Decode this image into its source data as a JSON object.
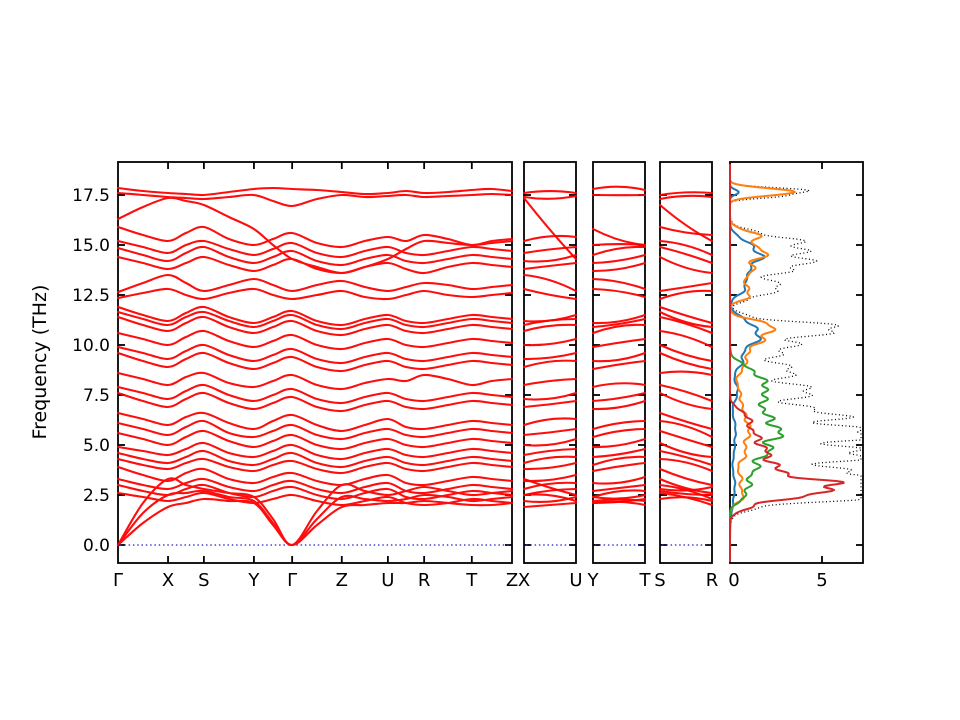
{
  "chart_data": {
    "type": "line",
    "title": "",
    "ylabel": "Frequency (THz)",
    "ylim": [
      -0.9,
      19.15
    ],
    "yticks": [
      0.0,
      2.5,
      5.0,
      7.5,
      10.0,
      12.5,
      15.0,
      17.5
    ],
    "ytick_labels": [
      "0.0",
      "2.5",
      "5.0",
      "7.5",
      "10.0",
      "12.5",
      "15.0",
      "17.5"
    ],
    "grid": false,
    "band_color": "#ff0000",
    "zero_line_color": "#2222cc",
    "panels": [
      {
        "id": "main",
        "kpath_labels": [
          "Γ",
          "X",
          "S",
          "Y",
          "Γ",
          "Z",
          "U",
          "R",
          "T",
          "Z"
        ],
        "kpoint_positions": [
          0,
          0.127,
          0.218,
          0.345,
          0.442,
          0.568,
          0.685,
          0.777,
          0.898,
          1.0
        ]
      },
      {
        "id": "xu",
        "kpath_labels": [
          "X",
          "U"
        ],
        "sample_idx_from": 2,
        "sample_idx_to": 12
      },
      {
        "id": "yt",
        "kpath_labels": [
          "Y",
          "T"
        ],
        "sample_idx_from": 6,
        "sample_idx_to": 16
      },
      {
        "id": "sr",
        "kpath_labels": [
          "S",
          "R"
        ],
        "sample_idx_from": 4,
        "sample_idx_to": 14
      },
      {
        "id": "dos",
        "xticks": [
          0,
          5
        ],
        "xtick_labels": [
          "0",
          "5"
        ],
        "xlim": [
          0,
          7.3
        ],
        "legend": "none"
      }
    ],
    "band_sample_t": "k-path sampled at t = 0,0.5,...,9 (10 high-symmetry points, midpoints between)",
    "bands": [
      [
        0.0,
        1.1,
        1.9,
        2.1,
        2.3,
        2.2,
        2.1,
        1.0,
        0.0,
        1.0,
        1.9,
        2.0,
        2.1,
        2.1,
        2.2,
        2.1,
        2.0,
        2.0,
        2.1
      ],
      [
        0.0,
        1.6,
        2.5,
        2.6,
        2.7,
        2.4,
        2.2,
        1.1,
        0.0,
        1.3,
        2.4,
        2.3,
        2.2,
        2.3,
        2.5,
        2.4,
        2.2,
        2.3,
        2.4
      ],
      [
        0.0,
        2.1,
        3.3,
        3.0,
        2.8,
        2.6,
        2.4,
        1.3,
        0.0,
        1.7,
        3.0,
        2.7,
        2.5,
        2.7,
        2.9,
        2.7,
        2.5,
        2.6,
        2.7
      ],
      [
        2.6,
        2.4,
        2.2,
        2.4,
        2.6,
        2.3,
        2.1,
        2.3,
        2.5,
        2.2,
        2.0,
        2.2,
        2.4,
        2.1,
        2.0,
        2.1,
        2.3,
        2.2,
        2.1
      ],
      [
        3.0,
        2.7,
        2.5,
        2.8,
        3.0,
        2.6,
        2.4,
        2.7,
        2.9,
        2.5,
        2.3,
        2.6,
        2.8,
        2.4,
        2.3,
        2.5,
        2.7,
        2.6,
        2.5
      ],
      [
        3.3,
        3.0,
        2.8,
        3.1,
        3.3,
        2.9,
        2.7,
        3.0,
        3.2,
        2.8,
        2.6,
        2.9,
        3.1,
        2.7,
        2.6,
        2.8,
        3.0,
        2.9,
        2.8
      ],
      [
        3.9,
        3.5,
        3.2,
        3.6,
        3.8,
        3.3,
        3.1,
        3.4,
        3.6,
        3.2,
        3.0,
        3.3,
        3.5,
        3.1,
        3.0,
        3.2,
        3.4,
        3.3,
        3.2
      ],
      [
        4.3,
        4.0,
        3.8,
        4.1,
        4.3,
        3.9,
        3.7,
        4.0,
        4.2,
        3.8,
        3.6,
        3.9,
        4.1,
        3.8,
        3.7,
        3.9,
        4.1,
        4.0,
        3.9
      ],
      [
        4.6,
        4.3,
        4.1,
        4.4,
        4.7,
        4.2,
        4.0,
        4.3,
        4.6,
        4.1,
        3.9,
        4.2,
        4.4,
        4.1,
        4.0,
        4.2,
        4.4,
        4.3,
        4.2
      ],
      [
        4.9,
        4.7,
        4.5,
        4.8,
        5.1,
        4.6,
        4.4,
        4.7,
        5.0,
        4.5,
        4.3,
        4.6,
        4.8,
        4.5,
        4.4,
        4.6,
        4.8,
        4.7,
        4.6
      ],
      [
        5.6,
        5.3,
        5.0,
        5.4,
        5.7,
        5.2,
        4.9,
        5.2,
        5.5,
        5.0,
        4.8,
        5.1,
        5.3,
        5.0,
        4.9,
        5.1,
        5.3,
        5.2,
        5.1
      ],
      [
        6.1,
        5.8,
        5.5,
        5.9,
        6.2,
        5.6,
        5.4,
        5.7,
        6.0,
        5.5,
        5.3,
        5.6,
        5.8,
        5.5,
        5.4,
        5.6,
        5.8,
        5.7,
        5.6
      ],
      [
        6.6,
        6.3,
        6.0,
        6.4,
        6.6,
        6.1,
        5.8,
        6.2,
        6.5,
        6.0,
        5.7,
        6.0,
        6.3,
        5.9,
        5.8,
        6.0,
        6.2,
        6.1,
        6.0
      ],
      [
        7.6,
        7.2,
        6.9,
        7.3,
        7.6,
        7.1,
        6.8,
        7.1,
        7.4,
        6.9,
        6.7,
        7.0,
        7.2,
        6.9,
        6.8,
        7.0,
        7.2,
        7.1,
        7.0
      ],
      [
        7.9,
        7.6,
        7.3,
        7.7,
        8.0,
        7.5,
        7.2,
        7.5,
        7.8,
        7.3,
        7.1,
        7.4,
        7.6,
        7.3,
        7.2,
        7.4,
        7.6,
        7.5,
        7.4
      ],
      [
        8.6,
        8.3,
        8.0,
        8.4,
        8.6,
        8.1,
        7.9,
        8.2,
        8.5,
        8.0,
        7.8,
        8.1,
        8.3,
        8.2,
        8.5,
        8.3,
        8.0,
        8.2,
        8.3
      ],
      [
        9.6,
        9.2,
        8.9,
        9.3,
        9.6,
        9.1,
        8.8,
        9.1,
        9.4,
        8.9,
        8.7,
        9.0,
        9.2,
        8.9,
        8.8,
        9.0,
        9.2,
        9.1,
        9.0
      ],
      [
        9.9,
        9.6,
        9.3,
        9.7,
        10.0,
        9.5,
        9.2,
        9.5,
        9.8,
        9.3,
        9.1,
        9.4,
        9.6,
        9.3,
        9.2,
        9.4,
        9.6,
        9.5,
        9.4
      ],
      [
        10.6,
        10.3,
        10.0,
        10.4,
        10.7,
        10.2,
        9.9,
        10.2,
        10.5,
        10.0,
        9.8,
        10.1,
        10.3,
        10.0,
        9.9,
        10.1,
        10.3,
        10.2,
        10.1
      ],
      [
        11.4,
        11.0,
        10.7,
        11.1,
        11.4,
        10.9,
        10.6,
        10.9,
        11.2,
        10.7,
        10.5,
        10.8,
        11.0,
        10.7,
        10.6,
        10.8,
        11.0,
        10.9,
        10.8
      ],
      [
        11.65,
        11.3,
        11.0,
        11.4,
        11.65,
        11.2,
        10.9,
        11.2,
        11.5,
        11.0,
        10.8,
        11.1,
        11.3,
        11.0,
        10.9,
        11.1,
        11.3,
        11.2,
        11.1
      ],
      [
        11.9,
        11.5,
        11.2,
        11.6,
        11.9,
        11.4,
        11.1,
        11.4,
        11.7,
        11.2,
        11.0,
        11.3,
        11.5,
        11.2,
        11.1,
        11.3,
        11.5,
        11.4,
        11.3
      ],
      [
        12.35,
        12.6,
        12.8,
        12.5,
        12.3,
        12.6,
        12.8,
        12.5,
        12.3,
        12.5,
        12.7,
        12.4,
        12.3,
        12.5,
        12.7,
        12.5,
        12.4,
        12.5,
        12.6
      ],
      [
        12.65,
        13.1,
        13.5,
        13.1,
        12.7,
        13.0,
        13.3,
        13.0,
        12.7,
        13.0,
        13.2,
        12.9,
        12.7,
        12.9,
        13.1,
        13.0,
        12.8,
        12.9,
        13.0
      ],
      [
        14.4,
        14.1,
        13.8,
        14.1,
        14.4,
        14.0,
        13.7,
        14.0,
        14.3,
        13.8,
        13.6,
        13.9,
        14.1,
        13.8,
        13.6,
        13.9,
        14.1,
        14.0,
        13.9
      ],
      [
        14.85,
        14.5,
        14.2,
        14.6,
        14.9,
        14.4,
        14.1,
        14.4,
        14.7,
        14.2,
        14.0,
        14.3,
        14.5,
        14.2,
        14.1,
        14.3,
        14.5,
        14.4,
        14.3
      ],
      [
        15.2,
        14.9,
        14.6,
        15.0,
        15.2,
        14.8,
        14.5,
        14.8,
        15.1,
        14.6,
        14.4,
        14.7,
        14.9,
        14.6,
        14.5,
        14.7,
        14.9,
        14.8,
        14.7
      ],
      [
        15.9,
        15.5,
        15.2,
        15.6,
        15.9,
        15.3,
        15.0,
        15.3,
        15.6,
        15.1,
        14.9,
        15.2,
        15.4,
        15.2,
        15.5,
        15.3,
        15.0,
        15.2,
        15.3
      ],
      [
        16.3,
        16.9,
        17.35,
        17.2,
        17.0,
        16.4,
        15.8,
        15.0,
        14.3,
        13.9,
        13.6,
        13.9,
        14.3,
        14.8,
        15.2,
        15.1,
        15.0,
        15.1,
        15.2
      ],
      [
        17.6,
        17.5,
        17.4,
        17.35,
        17.3,
        17.4,
        17.5,
        17.2,
        16.95,
        17.3,
        17.5,
        17.4,
        17.45,
        17.5,
        17.4,
        17.45,
        17.5,
        17.55,
        17.5
      ],
      [
        17.85,
        17.7,
        17.6,
        17.55,
        17.5,
        17.65,
        17.8,
        17.85,
        17.8,
        17.75,
        17.65,
        17.55,
        17.6,
        17.7,
        17.6,
        17.65,
        17.75,
        17.8,
        17.7
      ]
    ],
    "dos": {
      "xlabel_ticks": [
        "0",
        "5"
      ],
      "series": [
        {
          "name": "pdos-blue",
          "color": "#1f77b4",
          "peaks": [
            [
              17.65,
              0.5,
              0.12
            ],
            [
              15.0,
              1.1,
              0.35
            ],
            [
              14.3,
              1.4,
              0.3
            ],
            [
              13.6,
              1.0,
              0.3
            ],
            [
              12.8,
              0.8,
              0.3
            ],
            [
              10.9,
              1.3,
              0.4
            ],
            [
              10.2,
              1.0,
              0.35
            ],
            [
              9.3,
              0.7,
              0.4
            ],
            [
              7.8,
              0.4,
              0.5
            ],
            [
              5.5,
              0.3,
              0.9
            ],
            [
              2.8,
              0.25,
              0.8
            ]
          ]
        },
        {
          "name": "pdos-orange",
          "color": "#ff7f0e",
          "peaks": [
            [
              17.7,
              3.0,
              0.16
            ],
            [
              17.45,
              1.2,
              0.12
            ],
            [
              15.4,
              1.5,
              0.3
            ],
            [
              14.6,
              1.8,
              0.3
            ],
            [
              13.8,
              1.3,
              0.3
            ],
            [
              12.9,
              1.0,
              0.3
            ],
            [
              12.4,
              0.7,
              0.2
            ],
            [
              10.9,
              2.3,
              0.3
            ],
            [
              10.3,
              1.3,
              0.3
            ],
            [
              9.6,
              0.9,
              0.35
            ],
            [
              8.8,
              0.6,
              0.4
            ],
            [
              7.4,
              0.6,
              0.5
            ],
            [
              6.2,
              0.9,
              0.45
            ],
            [
              5.3,
              0.8,
              0.4
            ],
            [
              4.4,
              0.7,
              0.4
            ],
            [
              3.2,
              0.6,
              0.4
            ],
            [
              2.4,
              0.6,
              0.3
            ]
          ]
        },
        {
          "name": "pdos-green",
          "color": "#2ca02c",
          "peaks": [
            [
              8.6,
              1.3,
              0.4
            ],
            [
              7.8,
              1.8,
              0.35
            ],
            [
              7.0,
              1.5,
              0.35
            ],
            [
              6.2,
              1.7,
              0.4
            ],
            [
              5.5,
              2.1,
              0.4
            ],
            [
              4.7,
              1.7,
              0.35
            ],
            [
              3.9,
              1.3,
              0.35
            ],
            [
              3.1,
              1.0,
              0.3
            ],
            [
              2.4,
              0.8,
              0.25
            ]
          ]
        },
        {
          "name": "pdos-red",
          "color": "#d62728",
          "peaks": [
            [
              6.4,
              0.9,
              0.35
            ],
            [
              5.6,
              1.1,
              0.35
            ],
            [
              4.9,
              1.4,
              0.35
            ],
            [
              4.2,
              1.9,
              0.35
            ],
            [
              3.5,
              2.6,
              0.3
            ],
            [
              3.0,
              4.2,
              0.25
            ],
            [
              2.6,
              3.4,
              0.25
            ],
            [
              2.1,
              1.4,
              0.3
            ]
          ]
        }
      ],
      "total": {
        "name": "total-dos",
        "color": "#000000",
        "style": "dotted",
        "scale": 1.35
      }
    }
  }
}
